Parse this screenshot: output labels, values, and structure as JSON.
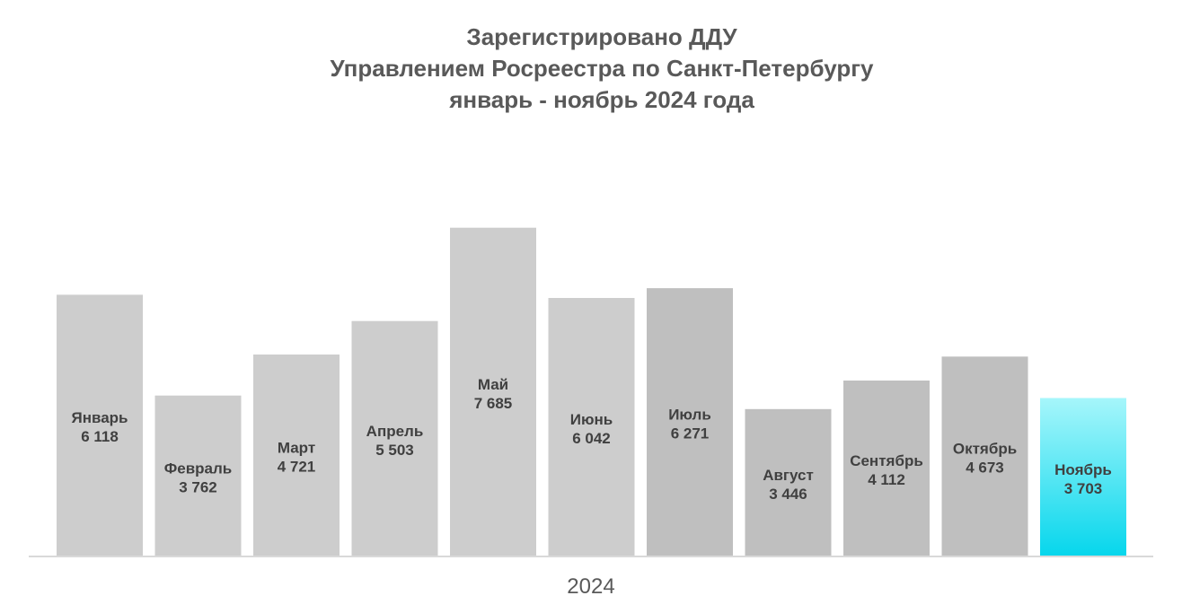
{
  "chart_data": {
    "type": "bar",
    "title_lines": [
      "Зарегистрировано ДДУ",
      "Управлением Росреестра по Санкт-Петербургу",
      "январь - ноябрь 2024 года"
    ],
    "x_category": "2024",
    "categories": [
      "Январь",
      "Февраль",
      "Март",
      "Апрель",
      "Май",
      "Июнь",
      "Июль",
      "Август",
      "Сентябрь",
      "Октябрь",
      "Ноябрь"
    ],
    "values": [
      6118,
      3762,
      4721,
      5503,
      7685,
      6042,
      6271,
      3446,
      4112,
      4673,
      3703
    ],
    "value_labels": [
      "6 118",
      "3 762",
      "4 721",
      "5 503",
      "7 685",
      "6 042",
      "6 271",
      "3 446",
      "4 112",
      "4 673",
      "3 703"
    ],
    "ylim": [
      0,
      9400
    ],
    "grid": false,
    "legend": "none",
    "colors": {
      "bar_light": "#cdcdcd",
      "bar_dark": "#bfbfbf",
      "highlight_top": "#a6f6fb",
      "highlight_bottom": "#06d6ec",
      "axis_line": "#d9d9d9",
      "label_text": "#404040",
      "title_text": "#595959"
    }
  }
}
